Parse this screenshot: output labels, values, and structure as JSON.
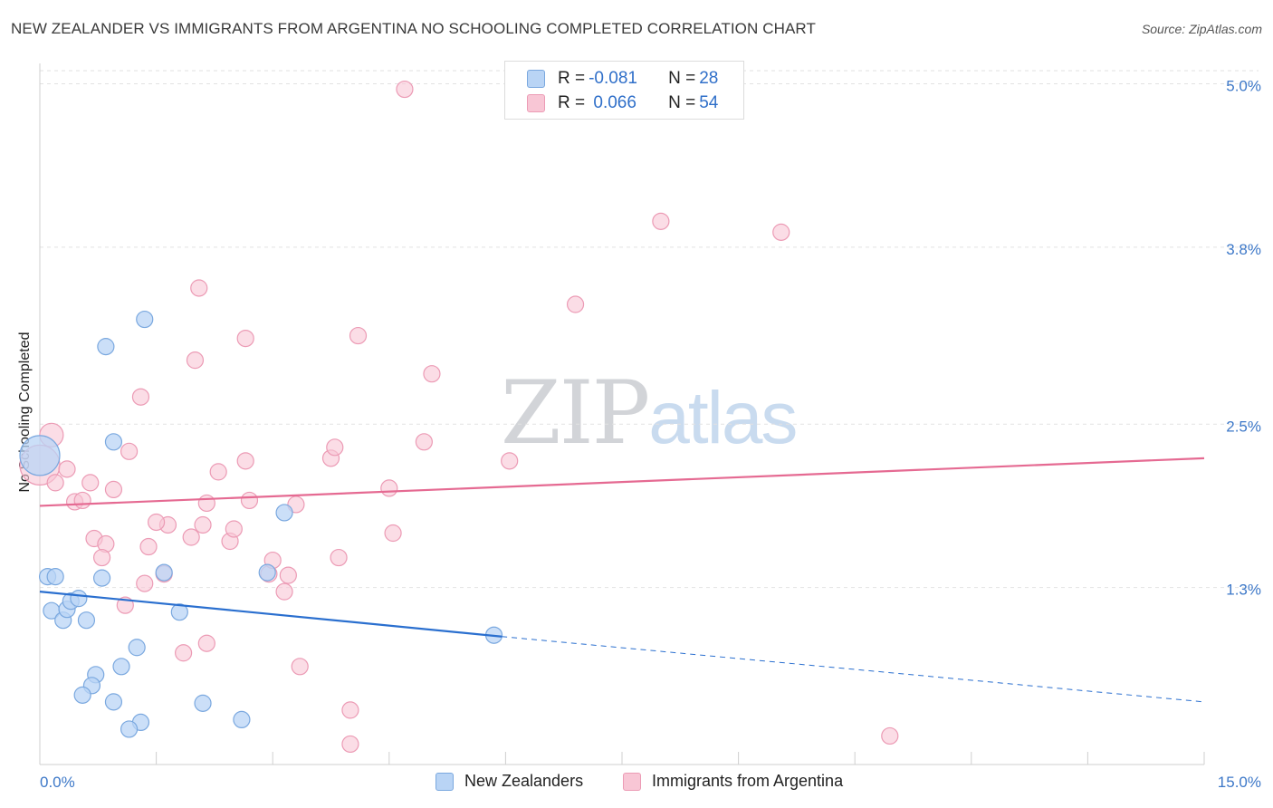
{
  "header": {
    "title": "NEW ZEALANDER VS IMMIGRANTS FROM ARGENTINA NO SCHOOLING COMPLETED CORRELATION CHART",
    "source": "Source: ZipAtlas.com"
  },
  "watermark": {
    "zip": "ZIP",
    "atlas": "atlas"
  },
  "legend": {
    "rows": [
      {
        "r_label": "R =",
        "r_value": "-0.081",
        "n_label": "N =",
        "n_value": "28"
      },
      {
        "r_label": "R =",
        "r_value": " 0.066",
        "n_label": "N =",
        "n_value": "54"
      }
    ]
  },
  "bottom_legend": {
    "blue": "New Zealanders",
    "pink": "Immigrants from Argentina"
  },
  "colors": {
    "blue_fill": "#b9d4f5",
    "blue_stroke": "#7aa8df",
    "blue_line": "#2a6fcf",
    "pink_fill": "#f8c6d5",
    "pink_stroke": "#ec9bb5",
    "pink_line": "#e56a92",
    "tick_text": "#3d78c8",
    "grid": "#e2e2e2"
  },
  "chart_data": {
    "type": "scatter",
    "title": "NEW ZEALANDER VS IMMIGRANTS FROM ARGENTINA NO SCHOOLING COMPLETED CORRELATION CHART",
    "xlabel": "",
    "ylabel": "No Schooling Completed",
    "xlim": [
      0,
      15
    ],
    "ylim": [
      0,
      5.15
    ],
    "x_tick_labels": [
      {
        "value": 0,
        "label": "0.0%"
      },
      {
        "value": 15,
        "label": "15.0%"
      }
    ],
    "y_ticks": [
      {
        "value": 1.3,
        "label": "1.3%"
      },
      {
        "value": 2.5,
        "label": "2.5%"
      },
      {
        "value": 3.8,
        "label": "3.8%"
      },
      {
        "value": 5.0,
        "label": "5.0%"
      }
    ],
    "series": [
      {
        "name": "New Zealanders",
        "color": "blue",
        "points": [
          [
            0.0,
            2.27,
            22
          ],
          [
            0.1,
            1.38,
            9
          ],
          [
            0.2,
            1.38,
            9
          ],
          [
            0.15,
            1.13,
            9
          ],
          [
            0.3,
            1.06,
            9
          ],
          [
            0.35,
            1.14,
            9
          ],
          [
            0.4,
            1.2,
            9
          ],
          [
            0.5,
            1.22,
            9
          ],
          [
            0.6,
            1.06,
            9
          ],
          [
            0.8,
            1.37,
            9
          ],
          [
            0.85,
            3.07,
            9
          ],
          [
            0.95,
            2.37,
            9
          ],
          [
            1.35,
            3.27,
            9
          ],
          [
            1.6,
            1.41,
            9
          ],
          [
            1.8,
            1.12,
            9
          ],
          [
            1.25,
            0.86,
            9
          ],
          [
            1.05,
            0.72,
            9
          ],
          [
            0.72,
            0.66,
            9
          ],
          [
            0.67,
            0.58,
            9
          ],
          [
            0.55,
            0.51,
            9
          ],
          [
            0.95,
            0.46,
            9
          ],
          [
            2.1,
            0.45,
            9
          ],
          [
            1.3,
            0.31,
            9
          ],
          [
            1.15,
            0.26,
            9
          ],
          [
            2.6,
            0.33,
            9
          ],
          [
            3.15,
            1.85,
            9
          ],
          [
            2.93,
            1.41,
            9
          ],
          [
            5.85,
            0.95,
            9
          ]
        ]
      },
      {
        "name": "Immigrants from Argentina",
        "color": "pink",
        "points": [
          [
            0.0,
            2.2,
            22
          ],
          [
            0.15,
            2.42,
            13
          ],
          [
            0.2,
            2.07,
            9
          ],
          [
            0.35,
            2.17,
            9
          ],
          [
            0.45,
            1.93,
            9
          ],
          [
            0.55,
            1.94,
            9
          ],
          [
            0.65,
            2.07,
            9
          ],
          [
            0.95,
            2.02,
            9
          ],
          [
            1.15,
            2.3,
            9
          ],
          [
            1.3,
            2.7,
            9
          ],
          [
            0.7,
            1.66,
            9
          ],
          [
            0.85,
            1.62,
            9
          ],
          [
            0.8,
            1.52,
            9
          ],
          [
            1.4,
            1.6,
            9
          ],
          [
            1.65,
            1.76,
            9
          ],
          [
            1.5,
            1.78,
            9
          ],
          [
            1.35,
            1.33,
            9
          ],
          [
            1.6,
            1.4,
            9
          ],
          [
            1.1,
            1.17,
            9
          ],
          [
            1.85,
            0.82,
            9
          ],
          [
            1.95,
            1.67,
            9
          ],
          [
            2.1,
            1.76,
            9
          ],
          [
            2.15,
            1.92,
            9
          ],
          [
            2.3,
            2.15,
            9
          ],
          [
            2.45,
            1.64,
            9
          ],
          [
            2.5,
            1.73,
            9
          ],
          [
            2.65,
            2.23,
            9
          ],
          [
            2.7,
            1.94,
            9
          ],
          [
            2.0,
            2.97,
            9
          ],
          [
            2.05,
            3.5,
            9
          ],
          [
            2.15,
            0.89,
            9
          ],
          [
            2.65,
            3.13,
            9
          ],
          [
            2.95,
            1.4,
            9
          ],
          [
            3.0,
            1.5,
            9
          ],
          [
            3.15,
            1.27,
            9
          ],
          [
            3.3,
            1.91,
            9
          ],
          [
            3.2,
            1.39,
            9
          ],
          [
            3.35,
            0.72,
            9
          ],
          [
            3.75,
            2.25,
            9
          ],
          [
            3.8,
            2.33,
            9
          ],
          [
            3.85,
            1.52,
            9
          ],
          [
            4.1,
            3.15,
            9
          ],
          [
            4.0,
            0.4,
            9
          ],
          [
            4.0,
            0.15,
            9
          ],
          [
            4.5,
            2.03,
            9
          ],
          [
            4.55,
            1.7,
            9
          ],
          [
            4.95,
            2.37,
            9
          ],
          [
            5.05,
            2.87,
            9
          ],
          [
            4.7,
            4.96,
            9
          ],
          [
            6.05,
            2.23,
            9
          ],
          [
            6.9,
            3.38,
            9
          ],
          [
            8.0,
            3.99,
            9
          ],
          [
            9.55,
            3.91,
            9
          ],
          [
            10.95,
            0.21,
            9
          ]
        ]
      }
    ],
    "trend_lines": [
      {
        "series": "New Zealanders",
        "x0": 0.0,
        "y0": 1.27,
        "x1": 5.95,
        "y1": 0.94,
        "dashed_to_x": 15.0,
        "dashed_to_y": 0.46
      },
      {
        "series": "Immigrants from Argentina",
        "x0": 0.0,
        "y0": 1.9,
        "x1": 15.0,
        "y1": 2.25
      }
    ]
  }
}
